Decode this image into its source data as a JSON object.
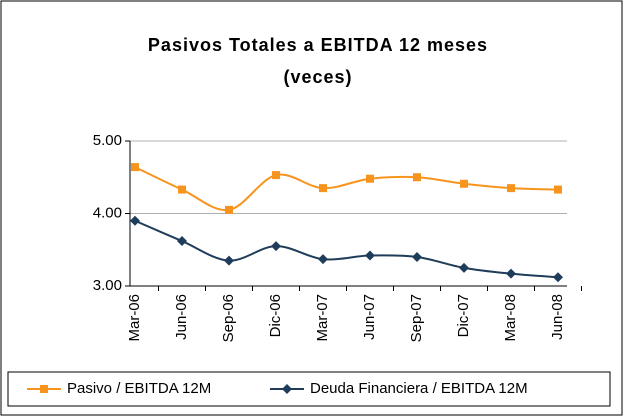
{
  "chart_data": {
    "type": "line",
    "title": "Pasivos Totales a EBITDA 12 meses",
    "subtitle": "(veces)",
    "categories": [
      "Mar-06",
      "Jun-06",
      "Sep-06",
      "Dic-06",
      "Mar-07",
      "Jun-07",
      "Sep-07",
      "Dic-07",
      "Mar-08",
      "Jun-08"
    ],
    "series": [
      {
        "name": "Pasivo / EBITDA 12M",
        "color": "#f7941d",
        "marker": "square",
        "values": [
          4.64,
          4.33,
          4.05,
          4.53,
          4.35,
          4.48,
          4.5,
          4.41,
          4.35,
          4.33
        ]
      },
      {
        "name": "Deuda Financiera / EBITDA 12M",
        "color": "#1f3d5a",
        "marker": "diamond",
        "values": [
          3.9,
          3.62,
          3.35,
          3.55,
          3.37,
          3.42,
          3.4,
          3.25,
          3.17,
          3.12
        ]
      }
    ],
    "ylim": [
      3,
      5
    ],
    "yticks": [
      {
        "value": 3,
        "label": "3.00"
      },
      {
        "value": 4,
        "label": "4.00"
      },
      {
        "value": 5,
        "label": "5.00"
      }
    ],
    "grid": true,
    "legend": "bottom"
  }
}
